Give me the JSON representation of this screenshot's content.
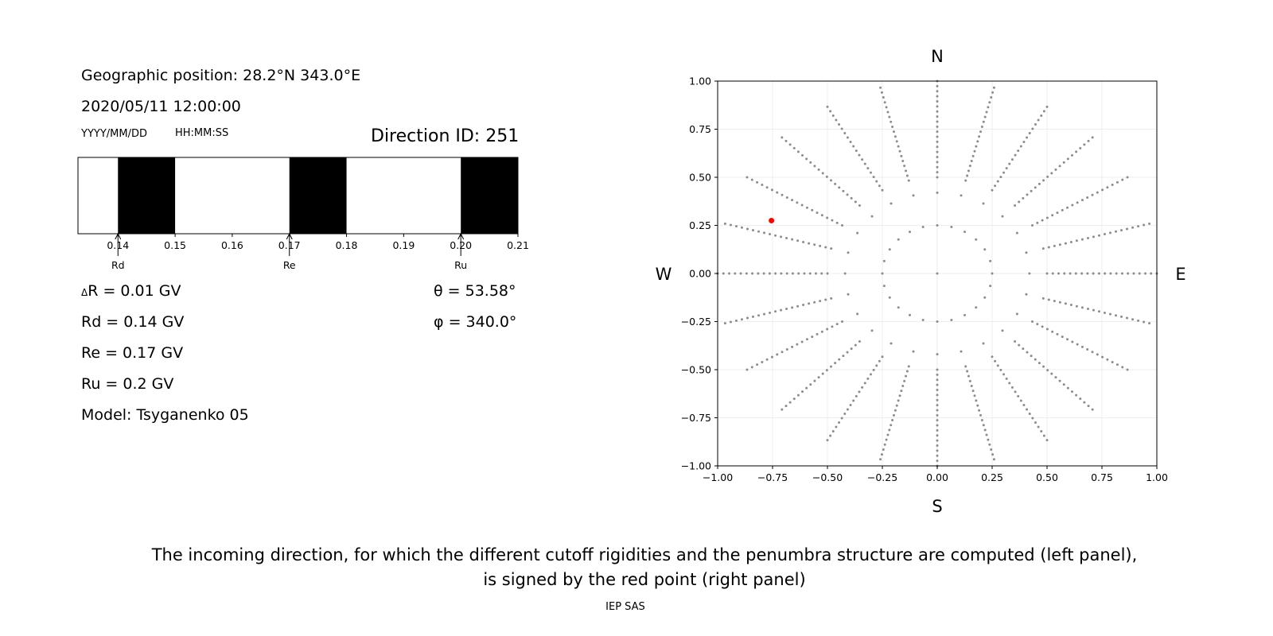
{
  "left": {
    "geo_position": "Geographic position: 28.2°N 343.0°E",
    "datetime": "2020/05/11 12:00:00",
    "date_format": "YYYY/MM/DD",
    "time_format": "HH:MM:SS",
    "direction_id": "Direction ID: 251",
    "delta_r": "R = 0.01 GV",
    "delta_symbol": "Δ",
    "rd_line": "Rd = 0.14 GV",
    "re_line": "Re = 0.17 GV",
    "ru_line": "Ru = 0.2 GV",
    "model_line": "Model: Tsyganenko 05",
    "theta_line": "θ = 53.58°",
    "phi_line": "φ = 340.0°"
  },
  "caption": {
    "line1": "The incoming direction, for which the different cutoff rigidities and the penumbra structure are computed (left panel),",
    "line2": "is signed by the red point (right panel)"
  },
  "footer": "IEP SAS",
  "colors": {
    "allowed": "#ffffff",
    "forbidden": "#000000",
    "grid_point": "#8c8c8c",
    "selected": "#ff0000"
  },
  "chart_data": [
    {
      "type": "penumbra-bar",
      "xlim": [
        0.133,
        0.21
      ],
      "xticks": [
        "0.14",
        "0.15",
        "0.16",
        "0.17",
        "0.18",
        "0.19",
        "0.20",
        "0.21"
      ],
      "xtick_values": [
        0.14,
        0.15,
        0.16,
        0.17,
        0.18,
        0.19,
        0.2,
        0.21
      ],
      "forbidden_bands": [
        [
          0.14,
          0.15
        ],
        [
          0.17,
          0.18
        ],
        [
          0.2,
          0.21
        ]
      ],
      "markers": [
        {
          "label": "Rd",
          "value": 0.14
        },
        {
          "label": "Re",
          "value": 0.17
        },
        {
          "label": "Ru",
          "value": 0.2
        }
      ]
    },
    {
      "type": "scatter",
      "xlim": [
        -1.0,
        1.0
      ],
      "ylim": [
        -1.0,
        1.0
      ],
      "xticks": [
        "−1.00",
        "−0.75",
        "−0.50",
        "−0.25",
        "0.00",
        "0.25",
        "0.50",
        "0.75",
        "1.00"
      ],
      "yticks": [
        "−1.00",
        "−0.75",
        "−0.50",
        "−0.25",
        "0.00",
        "0.25",
        "0.50",
        "0.75",
        "1.00"
      ],
      "tick_values": [
        -1.0,
        -0.75,
        -0.5,
        -0.25,
        0.0,
        0.25,
        0.5,
        0.75,
        1.0
      ],
      "grid": true,
      "compass": {
        "N": "N",
        "S": "S",
        "E": "E",
        "W": "W"
      },
      "series": [
        {
          "ring_radii": [
            0.25,
            0.42
          ],
          "ring_points": 24,
          "spoke_count": 24,
          "spoke_r_min": 0.5,
          "spoke_r_max": 1.0,
          "spoke_points": 20,
          "center": [
            0.0,
            0.0
          ]
        }
      ],
      "selected_point": {
        "x": -0.755,
        "y": 0.275
      }
    }
  ]
}
